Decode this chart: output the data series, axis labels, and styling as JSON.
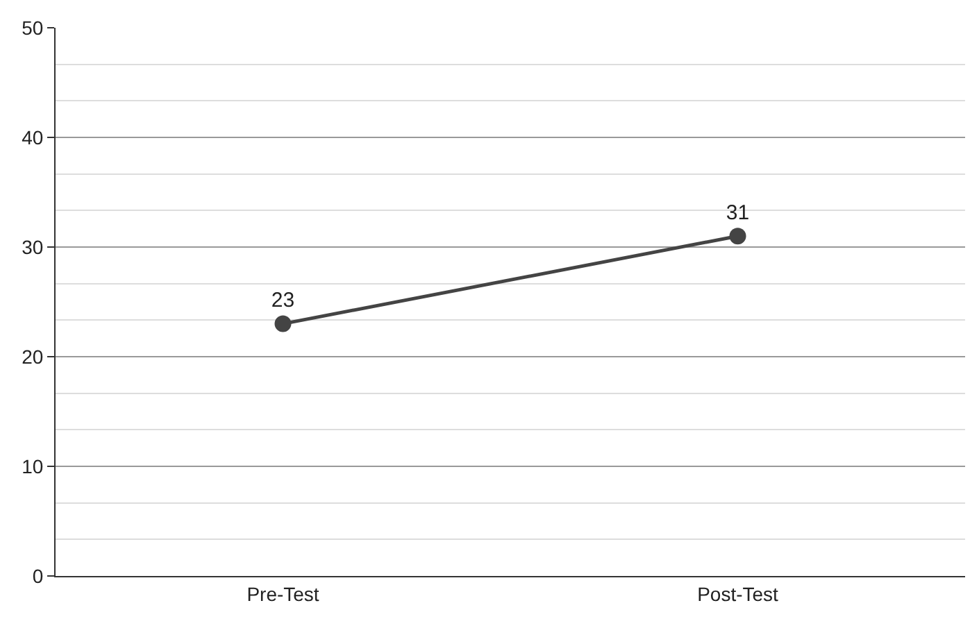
{
  "chart_data": {
    "type": "line",
    "categories": [
      "Pre-Test",
      "Post-Test"
    ],
    "series": [
      {
        "color": "#444444",
        "values": [
          23,
          31
        ]
      }
    ],
    "ylim": [
      0,
      50
    ],
    "yticks": [
      0,
      10,
      20,
      30,
      40,
      50
    ],
    "grid": "y",
    "marker": "circle",
    "line_style": "solid",
    "data_labels": true
  }
}
